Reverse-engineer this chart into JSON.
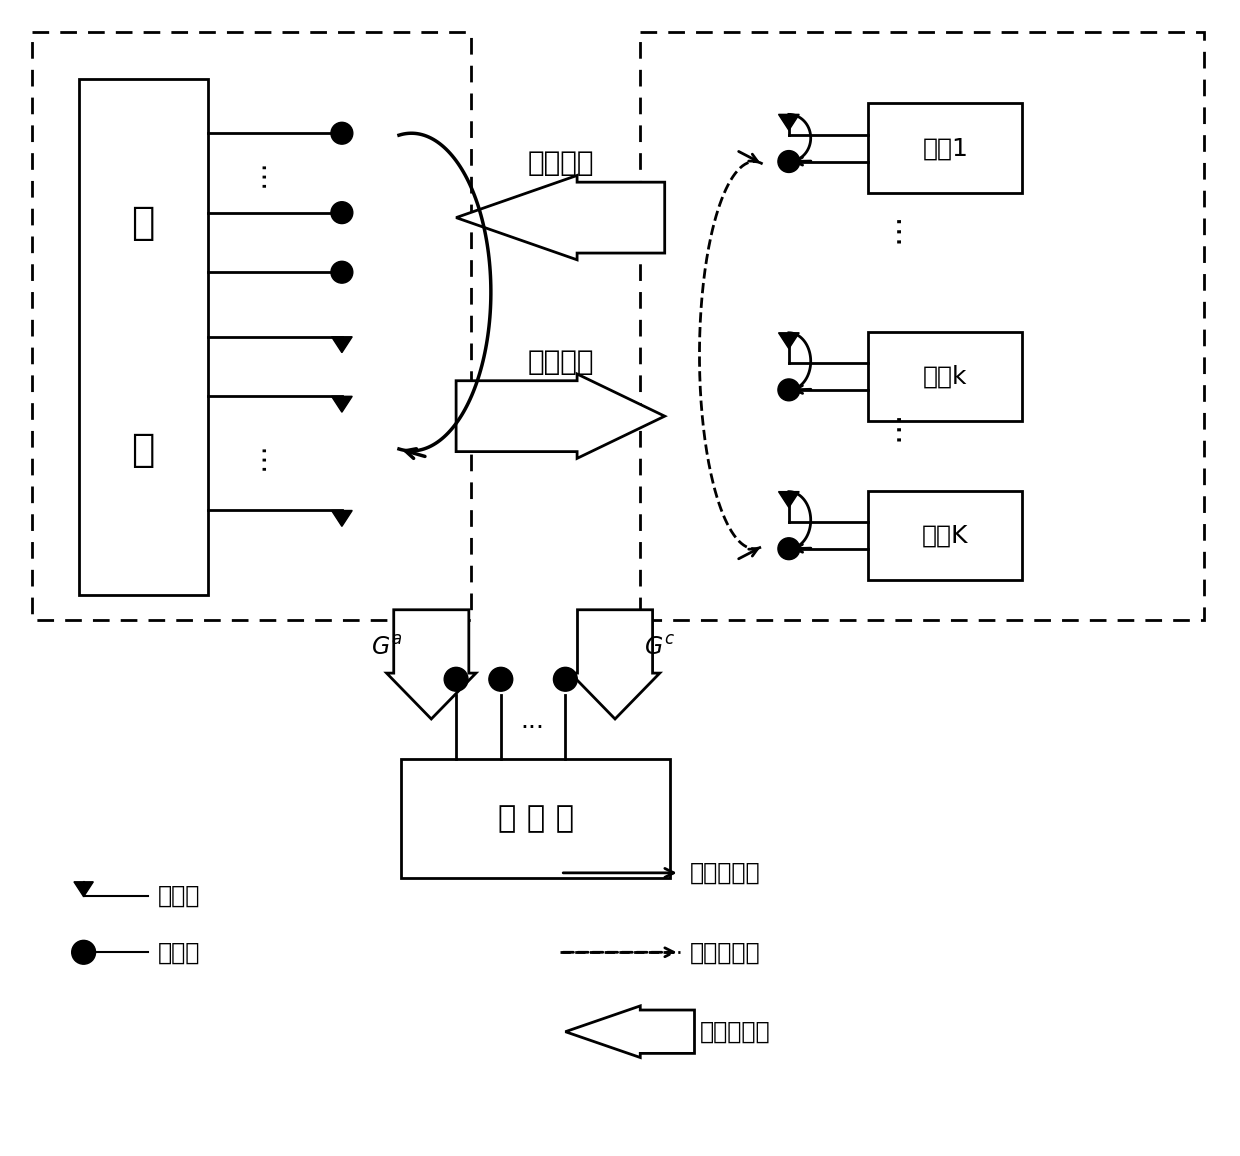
{
  "bg_color": "#ffffff",
  "lc": "#000000",
  "bs_text_top": "基",
  "bs_text_bot": "站",
  "user1_text": "用户1",
  "userk_text": "用户k",
  "userK_text": "用户K",
  "eaves_text": "窃 听 器",
  "uplink_text": "上行链路",
  "downlink_text": "下行链路",
  "legend_tx": "发送端",
  "legend_rx": "接收端",
  "legend_self": "用户自干扰",
  "legend_mutual": "用户互干扰",
  "legend_bs": "基站自干扰"
}
